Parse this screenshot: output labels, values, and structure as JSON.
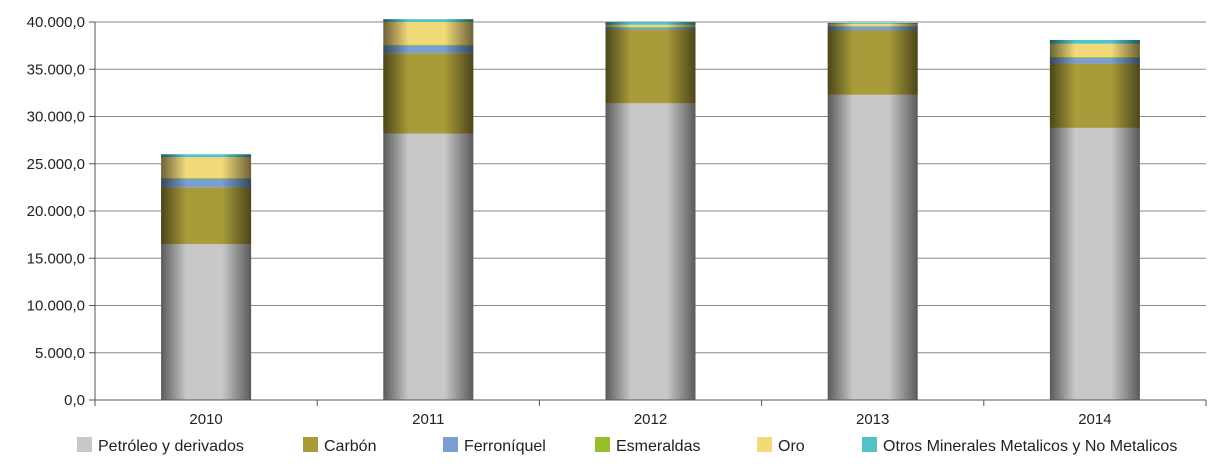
{
  "chart_data": {
    "type": "bar",
    "stacked": true,
    "categories": [
      "2010",
      "2011",
      "2012",
      "2013",
      "2014"
    ],
    "series": [
      {
        "name": "Petróleo y derivados",
        "color": "#c8c8c8",
        "values": [
          16500,
          28200,
          31400,
          32300,
          28800
        ]
      },
      {
        "name": "Carbón",
        "color": "#a89b3a",
        "values": [
          6000,
          8500,
          7800,
          6800,
          6800
        ]
      },
      {
        "name": "Ferroníquel",
        "color": "#7a9ed0",
        "values": [
          900,
          800,
          200,
          400,
          600
        ]
      },
      {
        "name": "Esmeraldas",
        "color": "#98bf2a",
        "values": [
          100,
          100,
          100,
          100,
          100
        ]
      },
      {
        "name": "Oro",
        "color": "#f2d97a",
        "values": [
          2200,
          2400,
          200,
          200,
          1400
        ]
      },
      {
        "name": "Otros  Minerales Metalicos y No Metalicos",
        "color": "#4fc3c8",
        "values": [
          300,
          300,
          300,
          100,
          400
        ]
      }
    ],
    "ylim": [
      0,
      40000
    ],
    "yticks": [
      "0,0",
      "5.000,0",
      "10.000,0",
      "15.000,0",
      "20.000,0",
      "25.000,0",
      "30.000,0",
      "35.000,0",
      "40.000,0"
    ],
    "grid": true,
    "legend_position": "bottom"
  }
}
